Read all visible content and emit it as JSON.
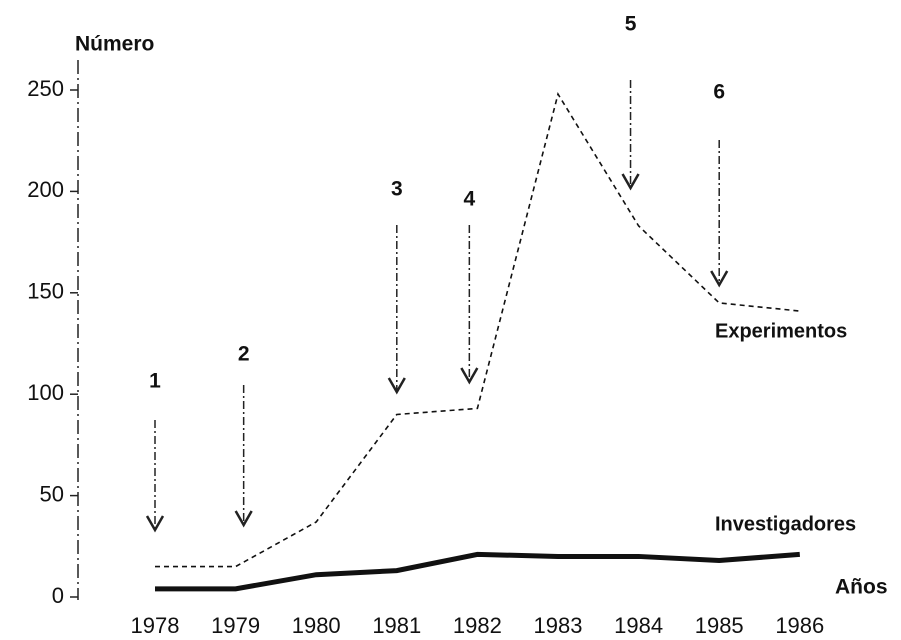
{
  "chart_data": {
    "type": "line",
    "ylabel": "Número",
    "xlabel": "Años",
    "categories": [
      "1978",
      "1979",
      "1980",
      "1981",
      "1982",
      "1983",
      "1984",
      "1985",
      "1986"
    ],
    "series": [
      {
        "name": "Experimentos",
        "color": "#111111",
        "dashed": true,
        "values": [
          15,
          15,
          37,
          90,
          93,
          248,
          183,
          145,
          141
        ]
      },
      {
        "name": "Investigadores",
        "color": "#111111",
        "dashed": false,
        "values": [
          4,
          4,
          11,
          13,
          21,
          20,
          20,
          18,
          21
        ]
      }
    ],
    "ylim": [
      0,
      250
    ],
    "yticks": [
      0,
      50,
      100,
      150,
      200,
      250
    ],
    "grid": false,
    "annotations": [
      {
        "text": "1",
        "x": 1978
      },
      {
        "text": "2",
        "x": 1979.1
      },
      {
        "text": "3",
        "x": 1981
      },
      {
        "text": "4",
        "x": 1981.9
      },
      {
        "text": "5",
        "x": 1983.9
      },
      {
        "text": "6",
        "x": 1985
      }
    ]
  }
}
